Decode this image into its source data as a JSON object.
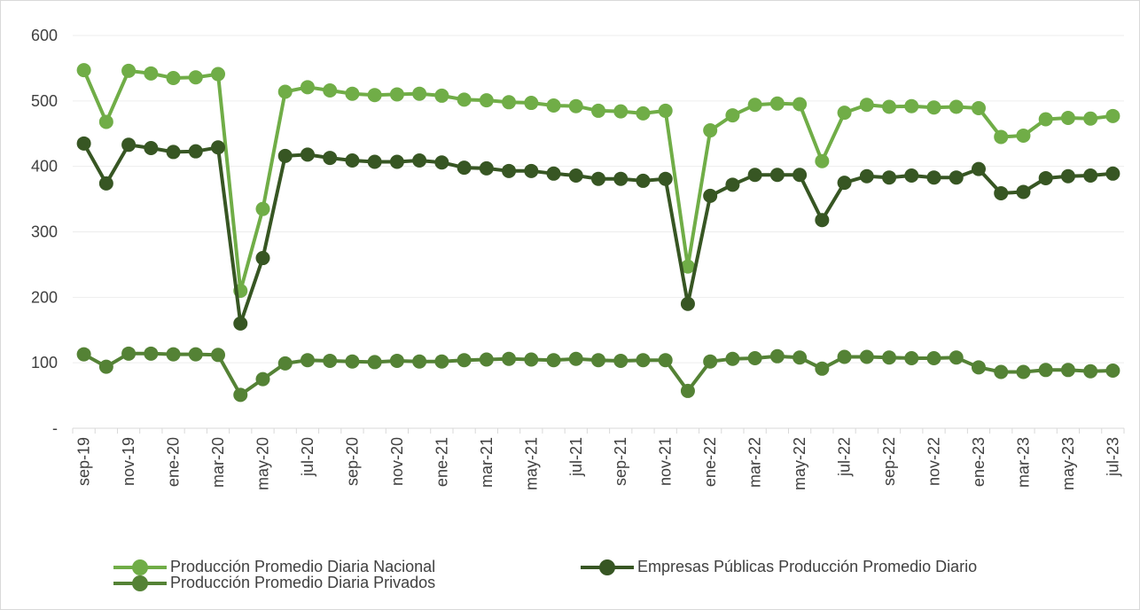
{
  "chart_data": {
    "type": "line",
    "title": "",
    "xlabel": "",
    "ylabel": "",
    "ylim": [
      0,
      600
    ],
    "y_ticks": [
      {
        "value": 0,
        "label": "-"
      },
      {
        "value": 100,
        "label": "100"
      },
      {
        "value": 200,
        "label": "200"
      },
      {
        "value": 300,
        "label": "300"
      },
      {
        "value": 400,
        "label": "400"
      },
      {
        "value": 500,
        "label": "500"
      },
      {
        "value": 600,
        "label": "600"
      }
    ],
    "grid": "horizontal",
    "legend_position": "bottom",
    "categories": [
      "sep-19",
      "oct-19",
      "nov-19",
      "dic-19",
      "ene-20",
      "feb-20",
      "mar-20",
      "abr-20",
      "may-20",
      "jun-20",
      "jul-20",
      "ago-20",
      "sep-20",
      "oct-20",
      "nov-20",
      "dic-20",
      "ene-21",
      "feb-21",
      "mar-21",
      "abr-21",
      "may-21",
      "jun-21",
      "jul-21",
      "ago-21",
      "sep-21",
      "oct-21",
      "nov-21",
      "dic-21",
      "ene-22",
      "feb-22",
      "mar-22",
      "abr-22",
      "may-22",
      "jun-22",
      "jul-22",
      "ago-22",
      "sep-22",
      "oct-22",
      "nov-22",
      "dic-22",
      "ene-23",
      "feb-23",
      "mar-23",
      "abr-23",
      "may-23",
      "jun-23",
      "jul-23"
    ],
    "x_tick_labels": [
      "sep-19",
      "nov-19",
      "ene-20",
      "mar-20",
      "may-20",
      "jul-20",
      "sep-20",
      "nov-20",
      "ene-21",
      "mar-21",
      "may-21",
      "jul-21",
      "sep-21",
      "nov-21",
      "ene-22",
      "mar-22",
      "may-22",
      "jul-22",
      "sep-22",
      "nov-22",
      "ene-23",
      "mar-23",
      "may-23",
      "jul-23"
    ],
    "series": [
      {
        "name": "Producción Promedio Diaria Nacional",
        "color": "#70AD47",
        "values": [
          547,
          468,
          546,
          542,
          535,
          536,
          541,
          210,
          335,
          514,
          521,
          516,
          511,
          509,
          510,
          511,
          508,
          502,
          501,
          498,
          497,
          493,
          492,
          485,
          484,
          481,
          485,
          247,
          455,
          478,
          494,
          496,
          495,
          408,
          482,
          494,
          491,
          492,
          490,
          491,
          489,
          445,
          447,
          472,
          474,
          473,
          477
        ]
      },
      {
        "name": "Empresas Públicas Producción Promedio Diario",
        "color": "#375623",
        "values": [
          435,
          374,
          433,
          428,
          422,
          423,
          429,
          160,
          260,
          416,
          418,
          413,
          409,
          407,
          407,
          409,
          406,
          398,
          397,
          393,
          393,
          389,
          386,
          381,
          381,
          378,
          381,
          190,
          355,
          372,
          387,
          387,
          387,
          318,
          375,
          385,
          383,
          386,
          383,
          383,
          396,
          359,
          361,
          382,
          385,
          386,
          389
        ]
      },
      {
        "name": "Producción Promedio Diaria Privados",
        "color": "#548235",
        "values": [
          113,
          94,
          114,
          114,
          113,
          113,
          112,
          51,
          75,
          99,
          104,
          103,
          102,
          101,
          103,
          102,
          102,
          104,
          105,
          106,
          105,
          104,
          106,
          104,
          103,
          104,
          104,
          57,
          102,
          106,
          107,
          110,
          108,
          91,
          109,
          109,
          108,
          107,
          107,
          108,
          93,
          86,
          86,
          89,
          89,
          87,
          88
        ]
      }
    ]
  }
}
